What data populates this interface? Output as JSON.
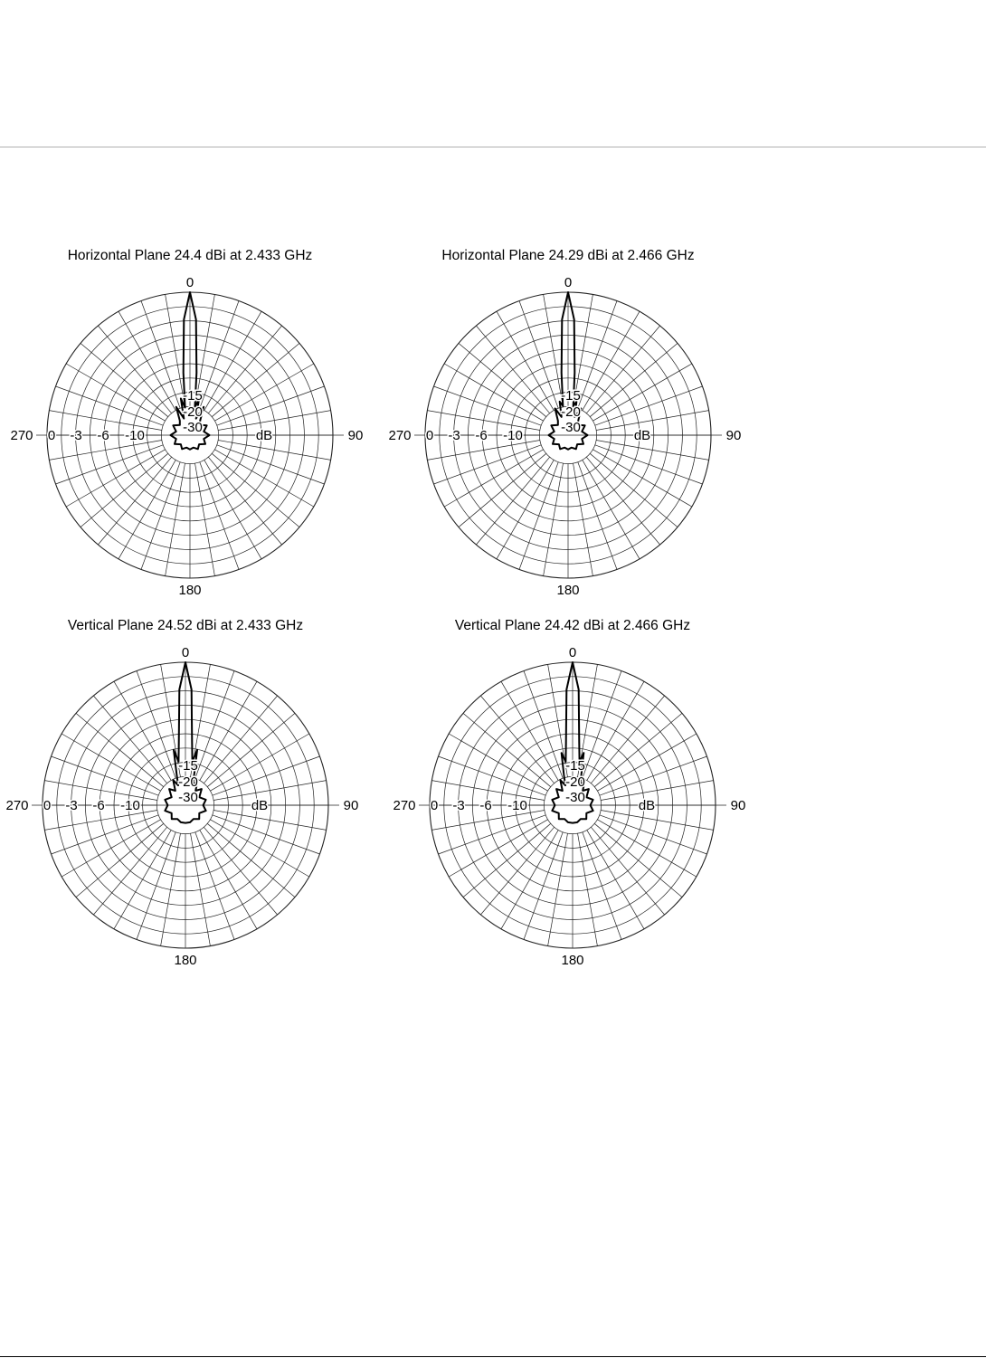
{
  "chart_data": [
    {
      "type": "polar",
      "title": "Horizontal Plane 24.4 dBi at 2.433 GHz",
      "angle_labels": [
        "0",
        "90",
        "180",
        "270"
      ],
      "radial_labels": [
        "0",
        "-3",
        "-6",
        "-10",
        "-15",
        "-20",
        "-30"
      ],
      "radial_unit": "dB",
      "series": [
        {
          "angle_deg": [
            0,
            3,
            6,
            10,
            14,
            20,
            26,
            35,
            45,
            60,
            75,
            90,
            105,
            120,
            135,
            150,
            165,
            180,
            195,
            210,
            225,
            240,
            255,
            270,
            285,
            300,
            315,
            325,
            334,
            340,
            346,
            350,
            354,
            357
          ],
          "gain_db": [
            0,
            -3,
            -10,
            -22,
            -18,
            -28,
            -20,
            -28,
            -30,
            -27,
            -30,
            -27,
            -30,
            -28,
            -31,
            -29,
            -31,
            -30,
            -31,
            -29,
            -31,
            -28,
            -30,
            -27,
            -30,
            -27,
            -30,
            -28,
            -20,
            -28,
            -18,
            -22,
            -10,
            -3
          ]
        }
      ]
    },
    {
      "type": "polar",
      "title": "Horizontal Plane 24.29 dBi at 2.466 GHz",
      "angle_labels": [
        "0",
        "90",
        "180",
        "270"
      ],
      "radial_labels": [
        "0",
        "-3",
        "-6",
        "-10",
        "-15",
        "-20",
        "-30"
      ],
      "radial_unit": "dB",
      "series": [
        {
          "angle_deg": [
            0,
            3,
            6,
            10,
            14,
            20,
            26,
            35,
            45,
            60,
            75,
            90,
            105,
            120,
            135,
            150,
            165,
            180,
            195,
            210,
            225,
            240,
            255,
            270,
            285,
            300,
            315,
            325,
            334,
            340,
            346,
            350,
            354,
            357
          ],
          "gain_db": [
            0,
            -3,
            -10,
            -21,
            -19,
            -27,
            -21,
            -28,
            -30,
            -27,
            -30,
            -27,
            -30,
            -28,
            -31,
            -29,
            -31,
            -30,
            -31,
            -29,
            -31,
            -28,
            -30,
            -27,
            -30,
            -27,
            -30,
            -28,
            -21,
            -27,
            -19,
            -21,
            -10,
            -3
          ]
        }
      ]
    },
    {
      "type": "polar",
      "title": "Vertical Plane 24.52 dBi at 2.433 GHz",
      "angle_labels": [
        "0",
        "90",
        "180",
        "270"
      ],
      "radial_labels": [
        "0",
        "-3",
        "-6",
        "-10",
        "-15",
        "-20",
        "-30"
      ],
      "radial_unit": "dB",
      "series": [
        {
          "angle_deg": [
            0,
            3,
            6,
            9,
            12,
            16,
            20,
            26,
            35,
            45,
            60,
            75,
            90,
            105,
            120,
            135,
            150,
            165,
            180,
            195,
            210,
            225,
            240,
            255,
            270,
            285,
            300,
            315,
            325,
            334,
            340,
            344,
            348,
            351,
            354,
            357
          ],
          "gain_db": [
            0,
            -3,
            -10,
            -16,
            -12,
            -20,
            -26,
            -22,
            -28,
            -25,
            -29,
            -26,
            -28,
            -26,
            -29,
            -27,
            -29,
            -28,
            -28,
            -28,
            -29,
            -27,
            -29,
            -26,
            -28,
            -26,
            -29,
            -25,
            -28,
            -22,
            -26,
            -20,
            -12,
            -16,
            -10,
            -3
          ]
        }
      ]
    },
    {
      "type": "polar",
      "title": "Vertical Plane 24.42 dBi at 2.466 GHz",
      "angle_labels": [
        "0",
        "90",
        "180",
        "270"
      ],
      "radial_labels": [
        "0",
        "-3",
        "-6",
        "-10",
        "-15",
        "-20",
        "-30"
      ],
      "radial_unit": "dB",
      "series": [
        {
          "angle_deg": [
            0,
            3,
            6,
            9,
            12,
            16,
            20,
            26,
            35,
            45,
            60,
            75,
            90,
            105,
            120,
            135,
            150,
            165,
            180,
            195,
            210,
            225,
            240,
            255,
            270,
            285,
            300,
            315,
            325,
            334,
            340,
            344,
            348,
            351,
            354,
            357
          ],
          "gain_db": [
            0,
            -3,
            -10,
            -16,
            -13,
            -20,
            -26,
            -22,
            -28,
            -25,
            -29,
            -26,
            -28,
            -26,
            -29,
            -27,
            -29,
            -28,
            -28,
            -28,
            -29,
            -27,
            -29,
            -26,
            -28,
            -26,
            -29,
            -25,
            -28,
            -22,
            -26,
            -20,
            -13,
            -16,
            -10,
            -3
          ]
        }
      ]
    }
  ]
}
